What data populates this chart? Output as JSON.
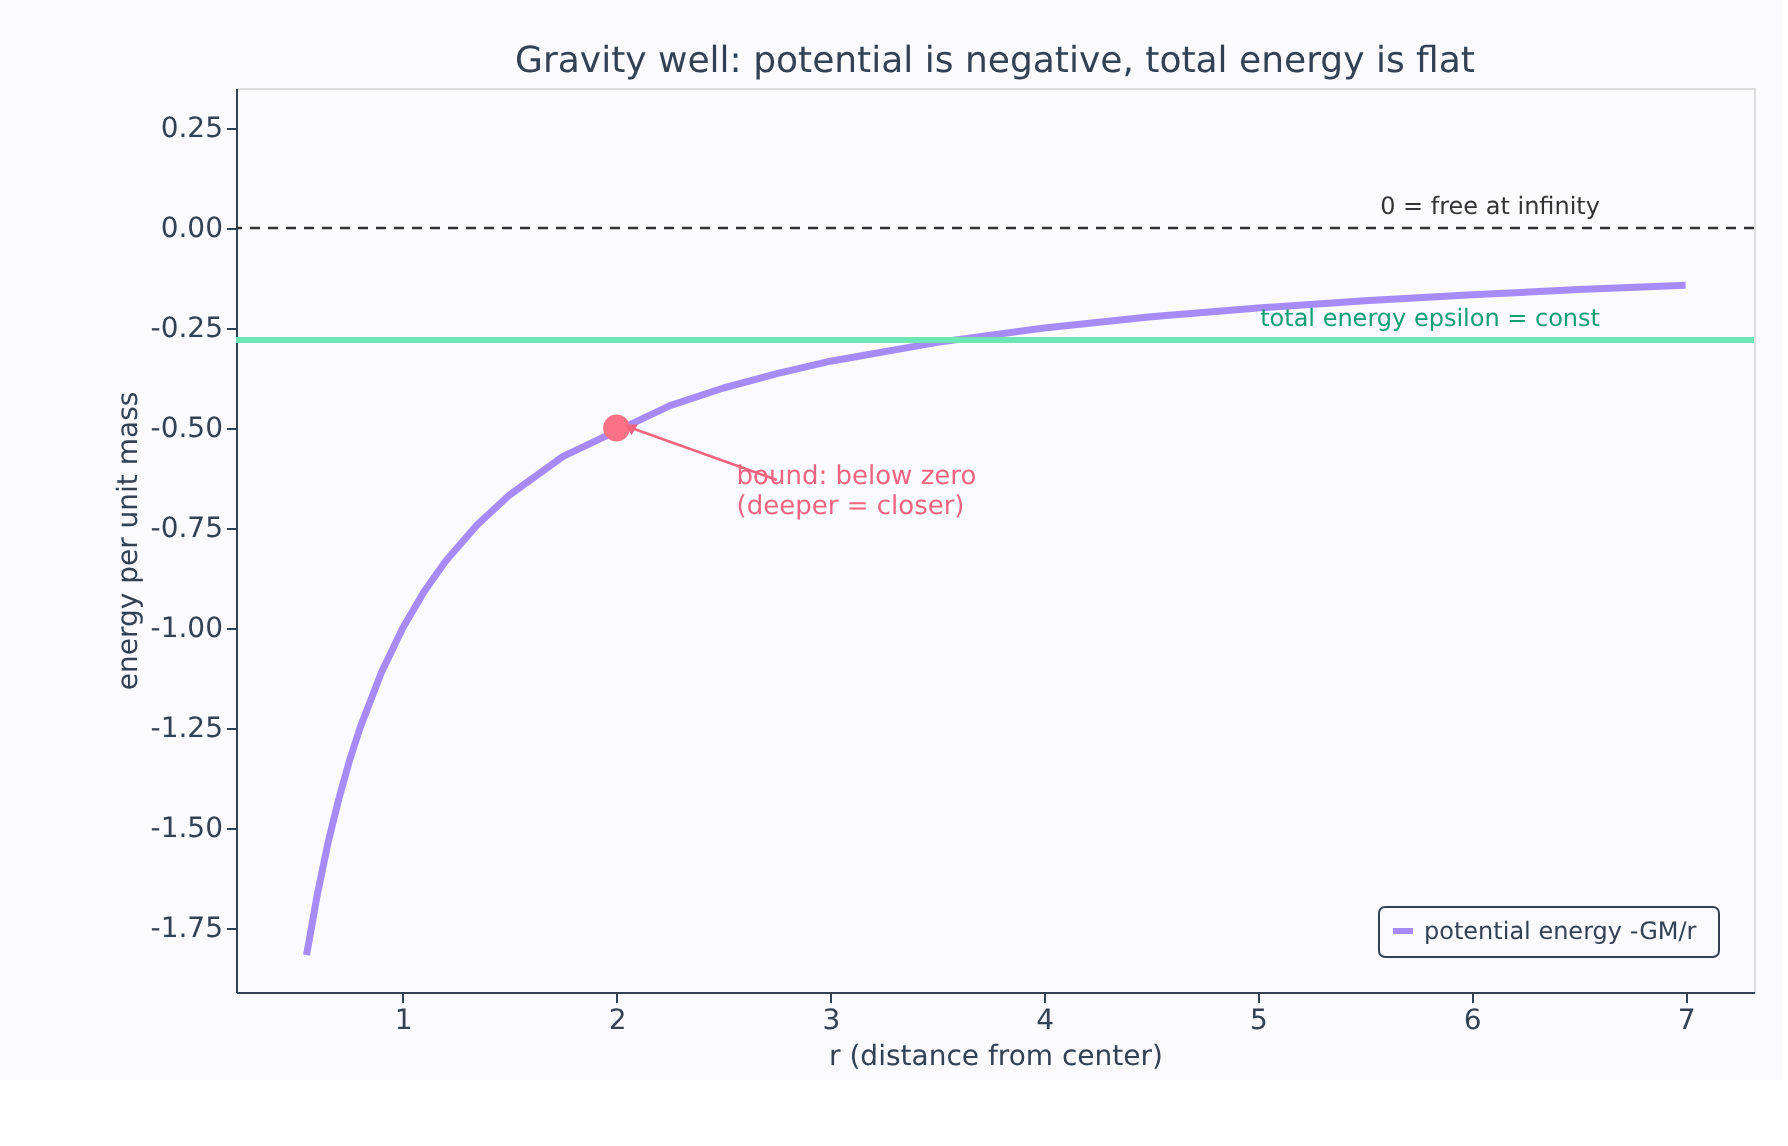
{
  "chart_data": {
    "type": "line",
    "title": "Gravity well: potential is negative, total energy is flat",
    "xlabel": "r  (distance from center)",
    "ylabel": "energy per unit mass",
    "xlim": [
      0.22,
      7.32
    ],
    "ylim": [
      -1.91,
      0.35
    ],
    "xticks": [
      1,
      2,
      3,
      4,
      5,
      6,
      7
    ],
    "yticks": [
      {
        "value": 0.25,
        "label": "0.25"
      },
      {
        "value": 0,
        "label": "0.00"
      },
      {
        "value": -0.25,
        "label": "-0.25"
      },
      {
        "value": -0.5,
        "label": "-0.50"
      },
      {
        "value": -0.75,
        "label": "-0.75"
      },
      {
        "value": -1,
        "label": "-1.00"
      },
      {
        "value": -1.25,
        "label": "-1.25"
      },
      {
        "value": -1.5,
        "label": "-1.50"
      },
      {
        "value": -1.75,
        "label": "-1.75"
      }
    ],
    "grid": false,
    "legend": "bottom right",
    "line_style": "solid",
    "marker": "none",
    "series": [
      {
        "name": "potential energy  -GM/r",
        "color": "#a78bfa",
        "x": [
          0.55,
          0.6,
          0.65,
          0.7,
          0.75,
          0.8,
          0.9,
          1,
          1.1,
          1.2,
          1.35,
          1.5,
          1.75,
          2.25,
          2.5,
          2.75,
          3,
          3.5,
          4,
          4.5,
          5,
          5.5,
          6,
          6.5,
          7
        ],
        "values": [
          -1.818,
          -1.667,
          -1.538,
          -1.429,
          -1.333,
          -1.25,
          -1.111,
          -1,
          -0.909,
          -0.833,
          -0.741,
          -0.667,
          -0.571,
          -0.444,
          -0.4,
          -0.364,
          -0.333,
          -0.286,
          -0.25,
          -0.222,
          -0.2,
          -0.182,
          -0.167,
          -0.154,
          -0.143
        ]
      },
      {
        "type": "scatter",
        "marker": "circle",
        "color": "#fb7185",
        "x": [
          2
        ],
        "values": [
          -0.5
        ]
      }
    ],
    "ref_lines": [
      {
        "axis": "y",
        "value": 0,
        "label": "0 = free at infinity",
        "color": "#333333",
        "line_style": "dashed"
      },
      {
        "axis": "y",
        "value": -0.28,
        "label": "total energy  epsilon = const",
        "color": "#6ee7b7",
        "line_style": "solid"
      }
    ],
    "annotations": [
      {
        "text": "bound: below zero\n(deeper = closer)",
        "x": 2,
        "y": -0.5
      }
    ]
  }
}
